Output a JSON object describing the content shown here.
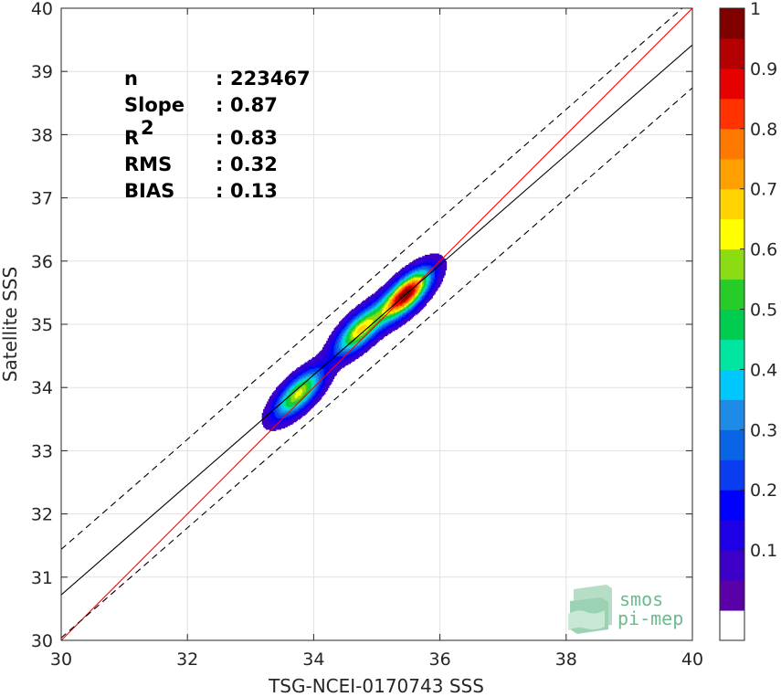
{
  "chart_data": {
    "type": "heatmap",
    "subtype": "density scatter contour",
    "xlabel": "TSG-NCEI-0170743 SSS",
    "ylabel": "Satellite SSS",
    "xlim": [
      30,
      40
    ],
    "ylim": [
      30,
      40
    ],
    "xticks": [
      "30",
      "32",
      "34",
      "36",
      "38",
      "40"
    ],
    "yticks": [
      "30",
      "31",
      "32",
      "33",
      "34",
      "35",
      "36",
      "37",
      "38",
      "39",
      "40"
    ],
    "grid": true,
    "stats": [
      {
        "label": "n",
        "sep": ":",
        "value": "223467"
      },
      {
        "label": "Slope",
        "sep": ":",
        "value": "0.87"
      },
      {
        "label": "R",
        "sup": "2",
        "sep": ":",
        "value": "0.83"
      },
      {
        "label": "RMS",
        "sep": ":",
        "value": "0.32"
      },
      {
        "label": "BIAS",
        "sep": ":",
        "value": "0.13"
      }
    ],
    "lines": [
      {
        "role": "identity",
        "color": "#ff0000",
        "style": "solid",
        "points": [
          [
            30,
            30
          ],
          [
            40,
            40
          ]
        ]
      },
      {
        "role": "fit",
        "color": "#000000",
        "style": "solid",
        "points": [
          [
            30,
            30.72
          ],
          [
            40,
            39.42
          ]
        ]
      },
      {
        "role": "fit-upper",
        "color": "#000000",
        "style": "dashed",
        "points": [
          [
            30,
            31.44
          ],
          [
            40,
            40.14
          ]
        ]
      },
      {
        "role": "fit-lower",
        "color": "#000000",
        "style": "dashed",
        "points": [
          [
            30,
            30.04
          ],
          [
            40,
            38.74
          ]
        ]
      }
    ],
    "density_peaks": [
      {
        "x": 35.45,
        "y": 35.47,
        "value": 1.0
      },
      {
        "x": 34.72,
        "y": 34.9,
        "value": 0.65
      },
      {
        "x": 33.75,
        "y": 33.9,
        "value": 0.62
      }
    ],
    "colorbar": {
      "range": [
        0,
        1
      ],
      "ticks": [
        "0.1",
        "0.2",
        "0.3",
        "0.4",
        "0.5",
        "0.6",
        "0.7",
        "0.8",
        "0.9",
        "1"
      ],
      "levels": [
        0,
        0.05,
        0.1,
        0.15,
        0.2,
        0.25,
        0.3,
        0.35,
        0.4,
        0.45,
        0.5,
        0.55,
        0.6,
        0.65,
        0.7,
        0.75,
        0.8,
        0.85,
        0.9,
        0.95
      ],
      "colors": [
        "#ffffff",
        "#5a00a8",
        "#3c00c9",
        "#1e00e6",
        "#0000ff",
        "#0a3cf0",
        "#0a64e6",
        "#1e8ce6",
        "#00c8ff",
        "#00e6a0",
        "#00cc50",
        "#28cc28",
        "#8cdc14",
        "#ffff00",
        "#ffd200",
        "#ffa000",
        "#ff7800",
        "#ff3200",
        "#e60000",
        "#b40000",
        "#800000"
      ]
    }
  },
  "watermark": {
    "line1": "smos",
    "line2": "pi-mep"
  },
  "colors": {
    "grid": "#e1e1e1",
    "axis": "#262626",
    "identity": "#ff0000"
  }
}
